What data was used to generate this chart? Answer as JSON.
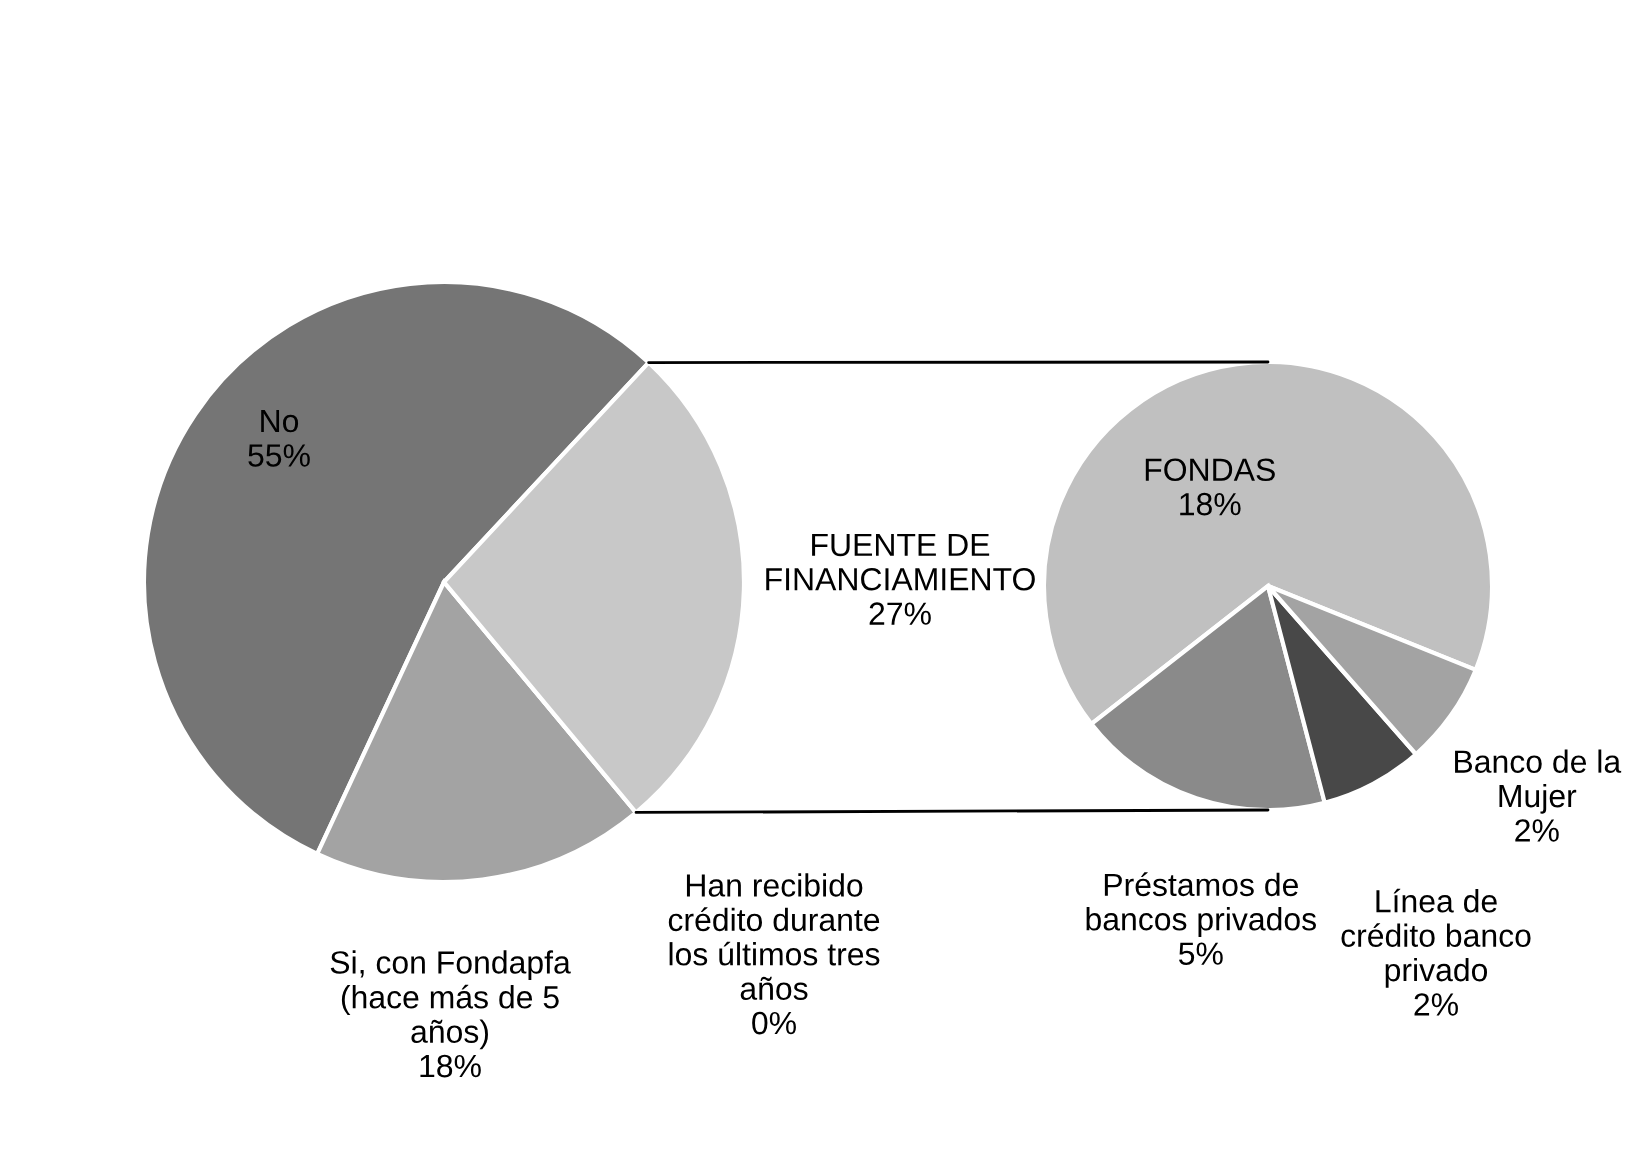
{
  "chart_data": [
    {
      "type": "pie",
      "categories": [
        "No",
        "Si, con Fondapfa\n(hace más de 5\naños)",
        "Han recibido\ncrédito durante\nlos últimos tres\naños",
        "FUENTE DE\nFINANCIAMIENTO"
      ],
      "values": [
        55,
        18,
        0,
        27
      ],
      "value_labels": [
        "55%",
        "18%",
        "0%",
        "27%"
      ],
      "colors": [
        "#757575",
        "#a3a3a3",
        "#8c8c8c",
        "#c8c8c8"
      ]
    },
    {
      "type": "pie",
      "categories": [
        "FONDAS",
        "Préstamos de\nbancos privados",
        "Línea de\ncrédito banco\nprivado",
        "Banco de la\nMujer"
      ],
      "values": [
        18,
        5,
        2,
        2
      ],
      "value_labels": [
        "18%",
        "5%",
        "2%",
        "2%"
      ],
      "colors": [
        "#c0c0c0",
        "#8a8a8a",
        "#484848",
        "#a3a3a3"
      ]
    }
  ]
}
